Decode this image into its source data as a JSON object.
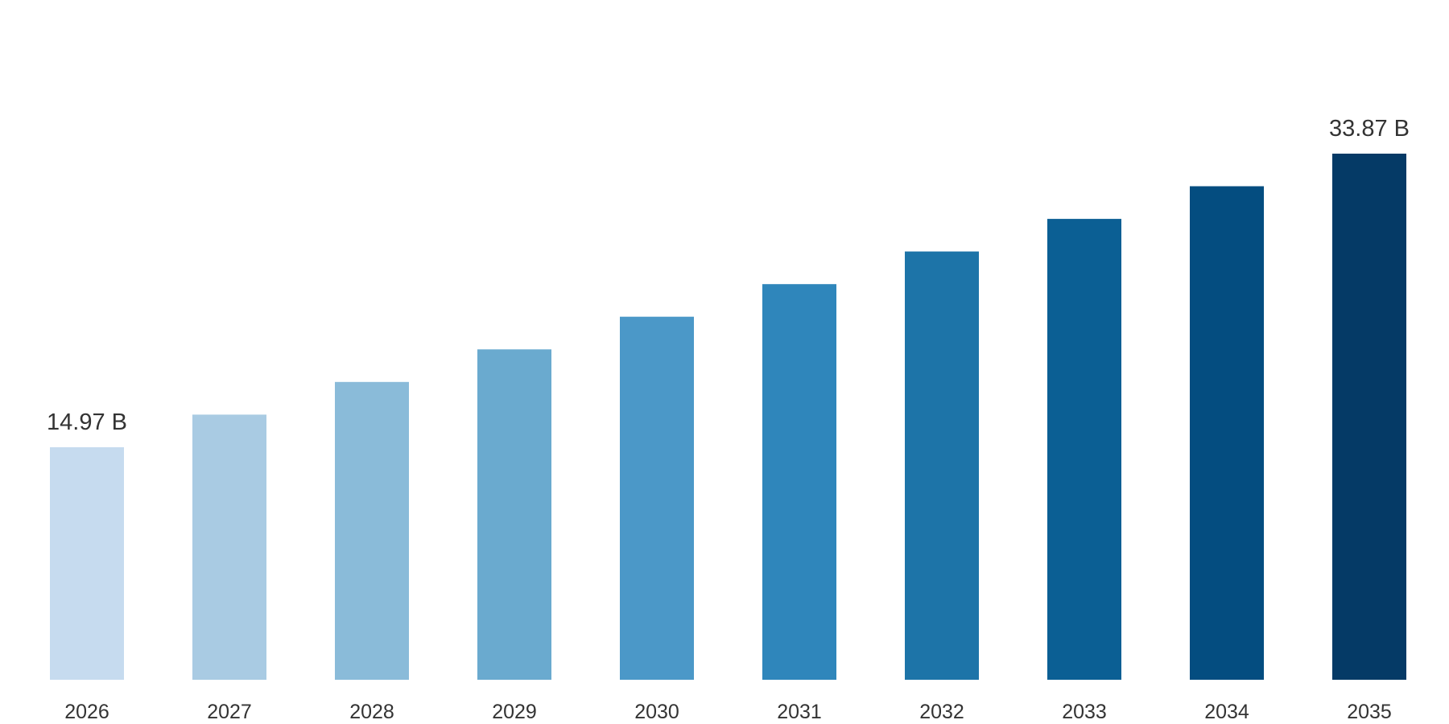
{
  "chart_data": {
    "type": "bar",
    "categories": [
      "2026",
      "2027",
      "2028",
      "2029",
      "2030",
      "2031",
      "2032",
      "2033",
      "2034",
      "2035"
    ],
    "series": [
      {
        "values": [
          14.97,
          17.07,
          19.17,
          21.27,
          23.37,
          25.47,
          27.57,
          29.67,
          31.77,
          33.87
        ],
        "data_labels": [
          "14.97 B",
          "",
          "",
          "",
          "",
          "",
          "",
          "",
          "",
          "33.87 B"
        ]
      }
    ],
    "colors": [
      "#c6dbef",
      "#a9cbe3",
      "#8abbd9",
      "#6aaacf",
      "#4b98c8",
      "#2f86bb",
      "#1d74a8",
      "#0b5f94",
      "#044d80",
      "#053a66"
    ],
    "ylim": [
      0,
      33.87
    ],
    "grid": false,
    "legend": "none",
    "xlabel": "",
    "ylabel": "",
    "title": ""
  }
}
